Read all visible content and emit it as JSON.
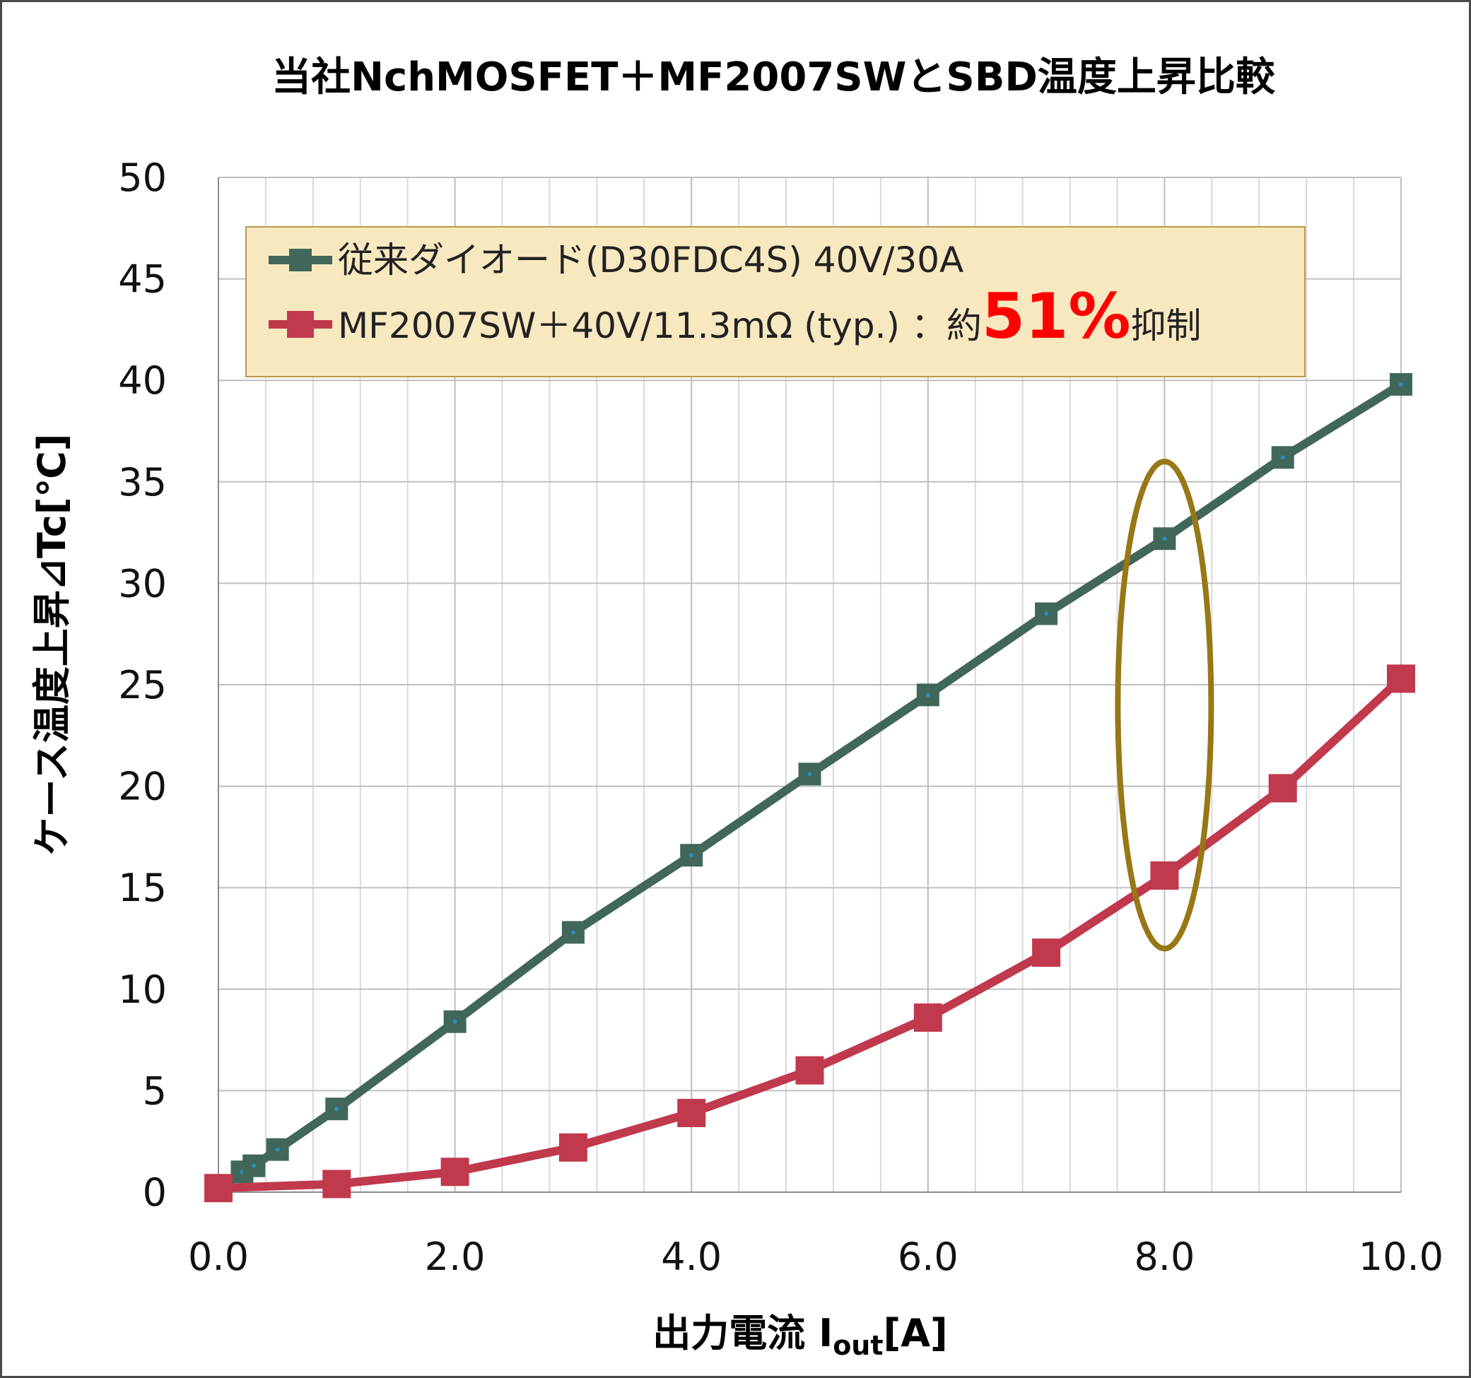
{
  "chart_data": {
    "type": "line",
    "title": "当社NchMOSFET＋MF2007SWとSBD温度上昇比較",
    "xlabel": "出力電流 I",
    "xlabel_sub": "out",
    "xlabel_suffix": "[A]",
    "ylabel": "ケース温度上昇⊿Tc[℃]",
    "xlim": [
      0,
      10
    ],
    "ylim": [
      0,
      50
    ],
    "x_ticks": [
      "0.0",
      "2.0",
      "4.0",
      "6.0",
      "8.0",
      "10.0"
    ],
    "y_ticks": [
      "0",
      "5",
      "10",
      "15",
      "20",
      "25",
      "30",
      "35",
      "40",
      "45",
      "50"
    ],
    "grid": true,
    "legend_position": "top-left",
    "series": [
      {
        "name": "従来ダイオード(D30FDC4S) 40V/30A",
        "color": "#41675a",
        "x": [
          0,
          0.2,
          0.3,
          0.5,
          1,
          2,
          3,
          4,
          5,
          6,
          7,
          8,
          9,
          10
        ],
        "y": [
          0.1,
          1.0,
          1.3,
          2.1,
          4.1,
          8.4,
          12.8,
          16.6,
          20.6,
          24.5,
          28.5,
          32.2,
          36.2,
          39.8
        ]
      },
      {
        "name": "MF2007SW＋40V/11.3mΩ (typ.) ：約",
        "name_highlight": "51%",
        "name_suffix": "抑制",
        "color": "#c0394c",
        "x": [
          0,
          1,
          2,
          3,
          4,
          5,
          6,
          7,
          8,
          9,
          10
        ],
        "y": [
          0.2,
          0.4,
          1.0,
          2.2,
          3.9,
          6.0,
          8.6,
          11.8,
          15.6,
          19.9,
          25.3
        ]
      }
    ],
    "annotation": {
      "shape": "ellipse",
      "at_x": 8,
      "y_range": [
        12,
        36
      ],
      "color": "#987716"
    },
    "highlight_color": "#ff0000",
    "legend_background": "#f8e8c0",
    "legend_border": "#b89a4a"
  }
}
